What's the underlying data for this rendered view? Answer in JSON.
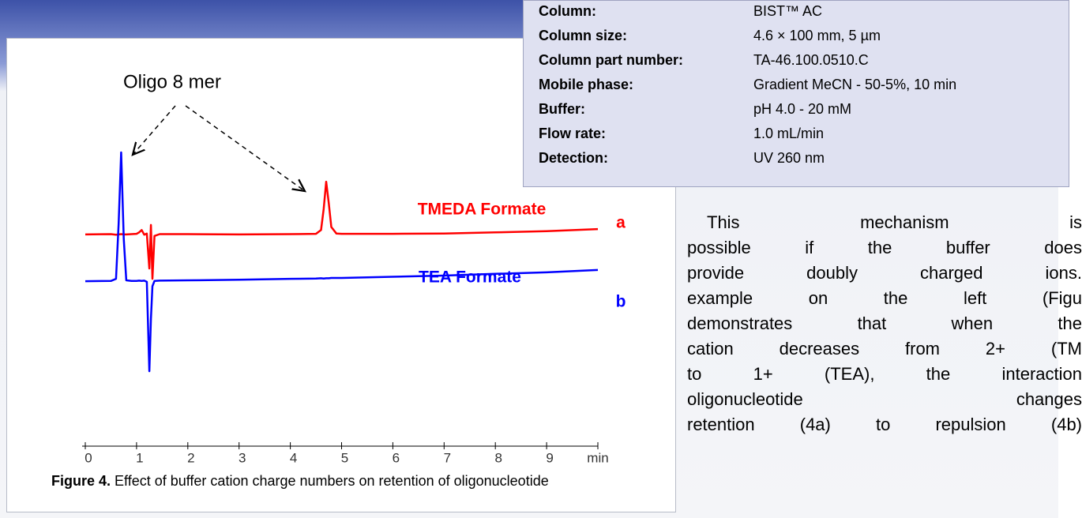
{
  "chart_data": {
    "type": "line",
    "annotation": "Oligo 8 mer",
    "x": [
      0,
      0.5,
      0.6,
      0.65,
      0.7,
      0.75,
      0.8,
      0.9,
      1.0,
      1.05,
      1.1,
      1.15,
      1.2,
      1.25,
      1.28,
      1.31,
      1.35,
      1.45,
      2,
      3,
      4,
      4.5,
      4.6,
      4.65,
      4.7,
      4.75,
      4.8,
      4.9,
      5,
      6,
      7,
      8,
      9,
      10
    ],
    "series": [
      {
        "name": "TMEDA Formate",
        "label": "a",
        "color": "#ff0000",
        "values": [
          71.5,
          71.6,
          71.4,
          71.5,
          71.6,
          71.5,
          71.5,
          71.6,
          71.7,
          72.2,
          73.0,
          71.4,
          71.8,
          60,
          74.7,
          56.5,
          71,
          71.6,
          71.6,
          71.5,
          71.6,
          71.7,
          73,
          80,
          89.3,
          82,
          74,
          71.8,
          71.7,
          71.7,
          71.8,
          72.2,
          72.6,
          73.3
        ]
      },
      {
        "name": "TEA Formate",
        "label": "b",
        "color": "#0000ff",
        "values": [
          55.7,
          55.8,
          56.5,
          75,
          99.2,
          70,
          56,
          55.8,
          55.8,
          55.9,
          55.8,
          55.9,
          55.5,
          25.3,
          43,
          54,
          55.8,
          55.9,
          56,
          56.2,
          56.5,
          56.6,
          56.7,
          56.6,
          56.7,
          56.7,
          56.8,
          56.8,
          56.8,
          57.2,
          57.6,
          58.2,
          58.7,
          59.5
        ]
      }
    ],
    "xlim": [
      0,
      10
    ],
    "ylim": [
      0,
      100
    ],
    "xticks": [
      0,
      1,
      2,
      3,
      4,
      5,
      6,
      7,
      8,
      9,
      {
        "value": 10,
        "label": "min"
      }
    ]
  },
  "caption": {
    "bold": "Figure 4.",
    "text": "Effect of buffer cation charge numbers on retention of oligonucleotide"
  },
  "conditions": [
    [
      "Column:",
      "BIST™ AC"
    ],
    [
      "Column size:",
      "4.6 × 100 mm, 5 µm"
    ],
    [
      "Column part number:",
      "TA-46.100.0510.C"
    ],
    [
      "Mobile phase:",
      "Gradient MeCN - 50-5%, 10 min"
    ],
    [
      "Buffer:",
      "pH 4.0 - 20 mM"
    ],
    [
      "Flow rate:",
      "1.0 mL/min"
    ],
    [
      "Detection:",
      "UV 260 nm"
    ]
  ],
  "paragraph": [
    "This mechanism is",
    "possible if the buffer does",
    "provide doubly charged ions.",
    "example on the left (Figu",
    "demonstrates that when the",
    "cation decreases from 2+ (TM",
    "to 1+ (TEA), the interaction",
    "oligonucleotide changes",
    "retention (4a) to repulsion (4b)"
  ]
}
